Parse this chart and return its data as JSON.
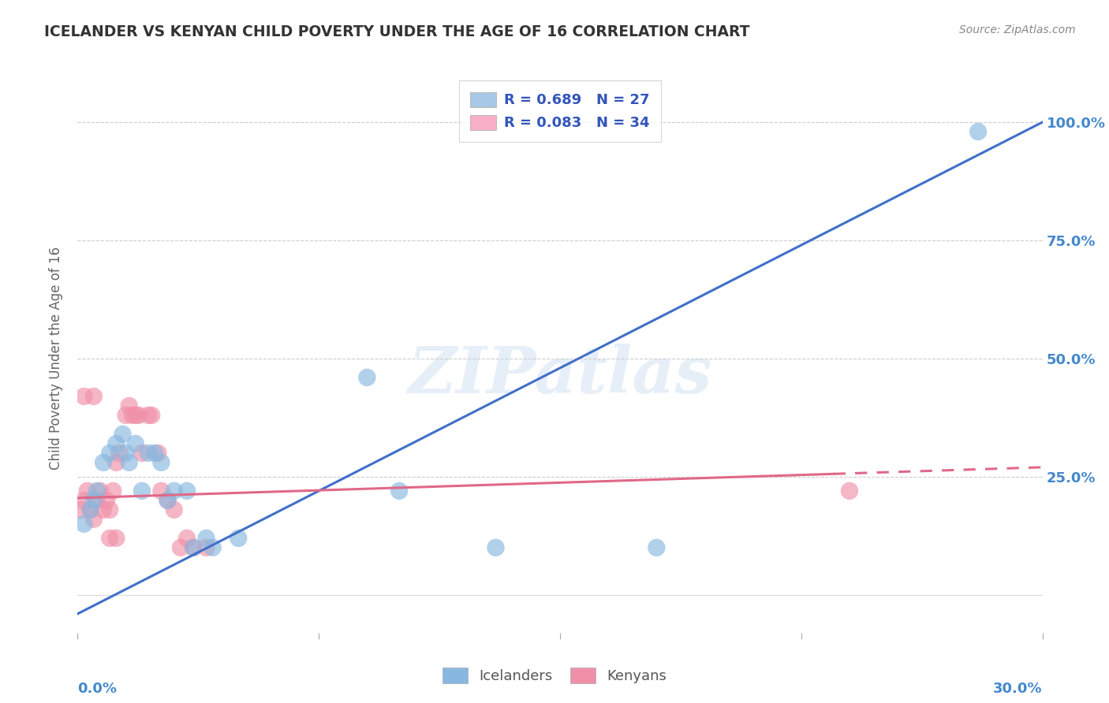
{
  "title": "ICELANDER VS KENYAN CHILD POVERTY UNDER THE AGE OF 16 CORRELATION CHART",
  "source": "Source: ZipAtlas.com",
  "ylabel": "Child Poverty Under the Age of 16",
  "watermark": "ZIPatlas",
  "ytick_labels": [
    "",
    "25.0%",
    "50.0%",
    "75.0%",
    "100.0%"
  ],
  "ytick_positions": [
    0.0,
    0.25,
    0.5,
    0.75,
    1.0
  ],
  "xmin": 0.0,
  "xmax": 0.3,
  "ymin": -0.08,
  "ymax": 1.08,
  "legend_entries": [
    {
      "label": "R = 0.689   N = 27",
      "color": "#a8c8e8"
    },
    {
      "label": "R = 0.083   N = 34",
      "color": "#f8b0c8"
    }
  ],
  "legend_bottom": [
    "Icelanders",
    "Kenyans"
  ],
  "icelanders_color": "#88b8e0",
  "kenyans_color": "#f090a8",
  "icelanders_line_color": "#4070c8",
  "kenyans_line_color": "#e06888",
  "icelanders_scatter": [
    [
      0.002,
      0.15
    ],
    [
      0.004,
      0.18
    ],
    [
      0.005,
      0.2
    ],
    [
      0.006,
      0.22
    ],
    [
      0.008,
      0.28
    ],
    [
      0.01,
      0.3
    ],
    [
      0.012,
      0.32
    ],
    [
      0.014,
      0.34
    ],
    [
      0.015,
      0.3
    ],
    [
      0.016,
      0.28
    ],
    [
      0.018,
      0.32
    ],
    [
      0.02,
      0.22
    ],
    [
      0.022,
      0.3
    ],
    [
      0.024,
      0.3
    ],
    [
      0.026,
      0.28
    ],
    [
      0.028,
      0.2
    ],
    [
      0.03,
      0.22
    ],
    [
      0.034,
      0.22
    ],
    [
      0.036,
      0.1
    ],
    [
      0.04,
      0.12
    ],
    [
      0.042,
      0.1
    ],
    [
      0.05,
      0.12
    ],
    [
      0.09,
      0.46
    ],
    [
      0.1,
      0.22
    ],
    [
      0.13,
      0.1
    ],
    [
      0.18,
      0.1
    ],
    [
      0.28,
      0.98
    ]
  ],
  "kenyans_scatter": [
    [
      0.001,
      0.18
    ],
    [
      0.002,
      0.2
    ],
    [
      0.003,
      0.22
    ],
    [
      0.004,
      0.18
    ],
    [
      0.005,
      0.16
    ],
    [
      0.006,
      0.2
    ],
    [
      0.007,
      0.22
    ],
    [
      0.008,
      0.18
    ],
    [
      0.009,
      0.2
    ],
    [
      0.01,
      0.18
    ],
    [
      0.011,
      0.22
    ],
    [
      0.012,
      0.28
    ],
    [
      0.013,
      0.3
    ],
    [
      0.015,
      0.38
    ],
    [
      0.016,
      0.4
    ],
    [
      0.017,
      0.38
    ],
    [
      0.018,
      0.38
    ],
    [
      0.019,
      0.38
    ],
    [
      0.02,
      0.3
    ],
    [
      0.022,
      0.38
    ],
    [
      0.023,
      0.38
    ],
    [
      0.025,
      0.3
    ],
    [
      0.026,
      0.22
    ],
    [
      0.028,
      0.2
    ],
    [
      0.03,
      0.18
    ],
    [
      0.032,
      0.1
    ],
    [
      0.034,
      0.12
    ],
    [
      0.036,
      0.1
    ],
    [
      0.04,
      0.1
    ],
    [
      0.002,
      0.42
    ],
    [
      0.005,
      0.42
    ],
    [
      0.012,
      0.12
    ],
    [
      0.24,
      0.22
    ],
    [
      0.01,
      0.12
    ]
  ],
  "icelander_line": {
    "x0": 0.0,
    "y0": -0.04,
    "x1": 0.3,
    "y1": 1.0
  },
  "kenyan_line": {
    "x0": 0.0,
    "y0": 0.205,
    "x1": 0.3,
    "y1": 0.27
  },
  "kenyan_line_dashed_start": 0.235,
  "grid_color": "#cccccc",
  "grid_style": "--",
  "title_color": "#333333",
  "axis_color": "#bbbbbb",
  "label_color": "#666666",
  "tick_label_color": "#4488cc",
  "source_color": "#888888"
}
